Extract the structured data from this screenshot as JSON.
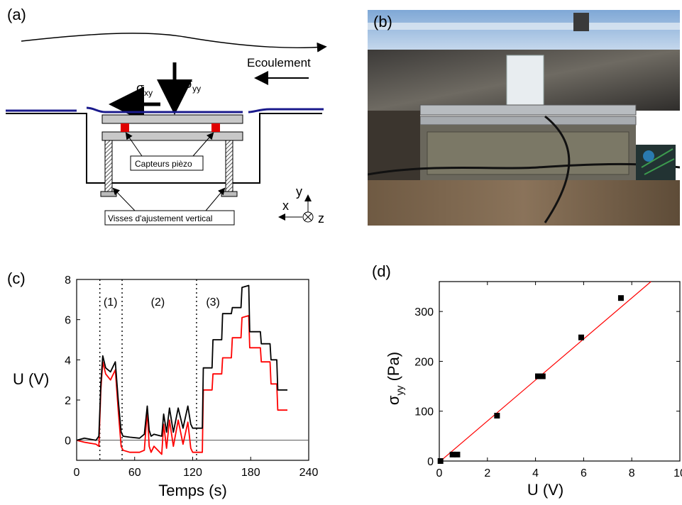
{
  "panels": {
    "a": {
      "label": "(a)",
      "flow": "Ecoulement",
      "sigma_xy": "σ",
      "sigma_xy_sub": "xy",
      "sigma_yy": "σ",
      "sigma_yy_sub": "yy",
      "sensors": "Capteurs pièzo",
      "screws": "Visses d'ajustement vertical",
      "axis_x": "x",
      "axis_y": "y",
      "axis_z": "z"
    },
    "b": {
      "label": "(b)"
    },
    "c": {
      "label": "(c)",
      "ylabel": "U (V)",
      "xlabel": "Temps (s)",
      "phases": [
        "(1)",
        "(2)",
        "(3)"
      ]
    },
    "d": {
      "label": "(d)",
      "ylabel": "σ",
      "ylabel_sub": "yy",
      "ylabel_unit": " (Pa)",
      "xlabel": "U (V)"
    }
  },
  "colors": {
    "black_series": "#000000",
    "red_series": "#ff0000",
    "fit": "#ff0000",
    "water": "#1a1a8c"
  },
  "chart_data": [
    {
      "type": "line",
      "panel": "c",
      "xlabel": "Temps (s)",
      "ylabel": "U (V)",
      "xlim": [
        0,
        240
      ],
      "ylim": [
        -1,
        8
      ],
      "xticks": [
        0,
        60,
        120,
        180,
        240
      ],
      "yticks": [
        0,
        2,
        4,
        6,
        8
      ],
      "phase_boundaries": [
        24,
        47,
        124
      ],
      "phase_labels": [
        {
          "text": "(1)",
          "x": 35,
          "y": 6.7
        },
        {
          "text": "(2)",
          "x": 84,
          "y": 6.7
        },
        {
          "text": "(3)",
          "x": 141,
          "y": 6.7
        }
      ],
      "series": [
        {
          "color": "#000000",
          "x": [
            0,
            8,
            20,
            23,
            25,
            27,
            30,
            35,
            40,
            43,
            46,
            48,
            55,
            65,
            70,
            73,
            75,
            77,
            80,
            88,
            90,
            93,
            96,
            100,
            105,
            110,
            115,
            118,
            120,
            123,
            125,
            130,
            131,
            140,
            141,
            150,
            151,
            160,
            161,
            170,
            171,
            178,
            179,
            190,
            191,
            200,
            201,
            207,
            208,
            218
          ],
          "y": [
            0,
            0.1,
            0,
            0.2,
            2.8,
            4.2,
            3.6,
            3.4,
            3.9,
            2,
            0.4,
            0.2,
            0.15,
            0.1,
            0.3,
            1.7,
            0.5,
            0.2,
            0.3,
            0.2,
            1.3,
            0.4,
            1.6,
            0.4,
            1.6,
            0.6,
            1.7,
            0.8,
            0.6,
            0.6,
            0.6,
            0.6,
            3.6,
            3.6,
            5.0,
            5.0,
            6.3,
            6.3,
            6.6,
            6.6,
            7.6,
            7.7,
            5.4,
            5.4,
            4.8,
            4.8,
            4.0,
            4.0,
            2.5,
            2.5
          ]
        },
        {
          "color": "#ff0000",
          "x": [
            0,
            8,
            20,
            23,
            25,
            27,
            30,
            35,
            40,
            43,
            46,
            48,
            55,
            65,
            70,
            73,
            75,
            77,
            80,
            88,
            90,
            93,
            96,
            100,
            105,
            110,
            115,
            118,
            120,
            123,
            125,
            130,
            131,
            140,
            141,
            150,
            151,
            160,
            161,
            170,
            171,
            178,
            179,
            190,
            191,
            200,
            201,
            207,
            208,
            218
          ],
          "y": [
            0,
            -0.1,
            -0.2,
            -0.3,
            2.5,
            3.9,
            3.3,
            3.0,
            3.5,
            1.5,
            -0.3,
            -0.5,
            -0.6,
            -0.6,
            -0.5,
            1.5,
            -0.3,
            -0.6,
            -0.3,
            -0.7,
            0.8,
            -0.4,
            1.0,
            -0.3,
            1.0,
            -0.2,
            0.9,
            -0.4,
            -0.6,
            -0.6,
            -0.6,
            -0.6,
            2.5,
            2.5,
            3.3,
            3.3,
            4.1,
            4.1,
            5.1,
            5.1,
            6.1,
            6.2,
            4.6,
            4.6,
            3.9,
            3.9,
            2.8,
            2.8,
            1.5,
            1.5
          ]
        }
      ]
    },
    {
      "type": "scatter",
      "panel": "d",
      "xlabel": "U (V)",
      "ylabel": "σyy (Pa)",
      "xlim": [
        0,
        10
      ],
      "ylim": [
        0,
        360
      ],
      "xticks": [
        0,
        2,
        4,
        6,
        8,
        10
      ],
      "yticks": [
        0,
        100,
        200,
        300
      ],
      "points": [
        [
          0.05,
          0
        ],
        [
          0.55,
          13
        ],
        [
          0.75,
          13
        ],
        [
          2.4,
          91
        ],
        [
          4.1,
          170
        ],
        [
          4.3,
          170
        ],
        [
          5.9,
          248
        ],
        [
          7.55,
          327
        ]
      ],
      "fit": {
        "x": [
          0,
          8.8
        ],
        "y": [
          -2,
          360
        ]
      }
    }
  ]
}
